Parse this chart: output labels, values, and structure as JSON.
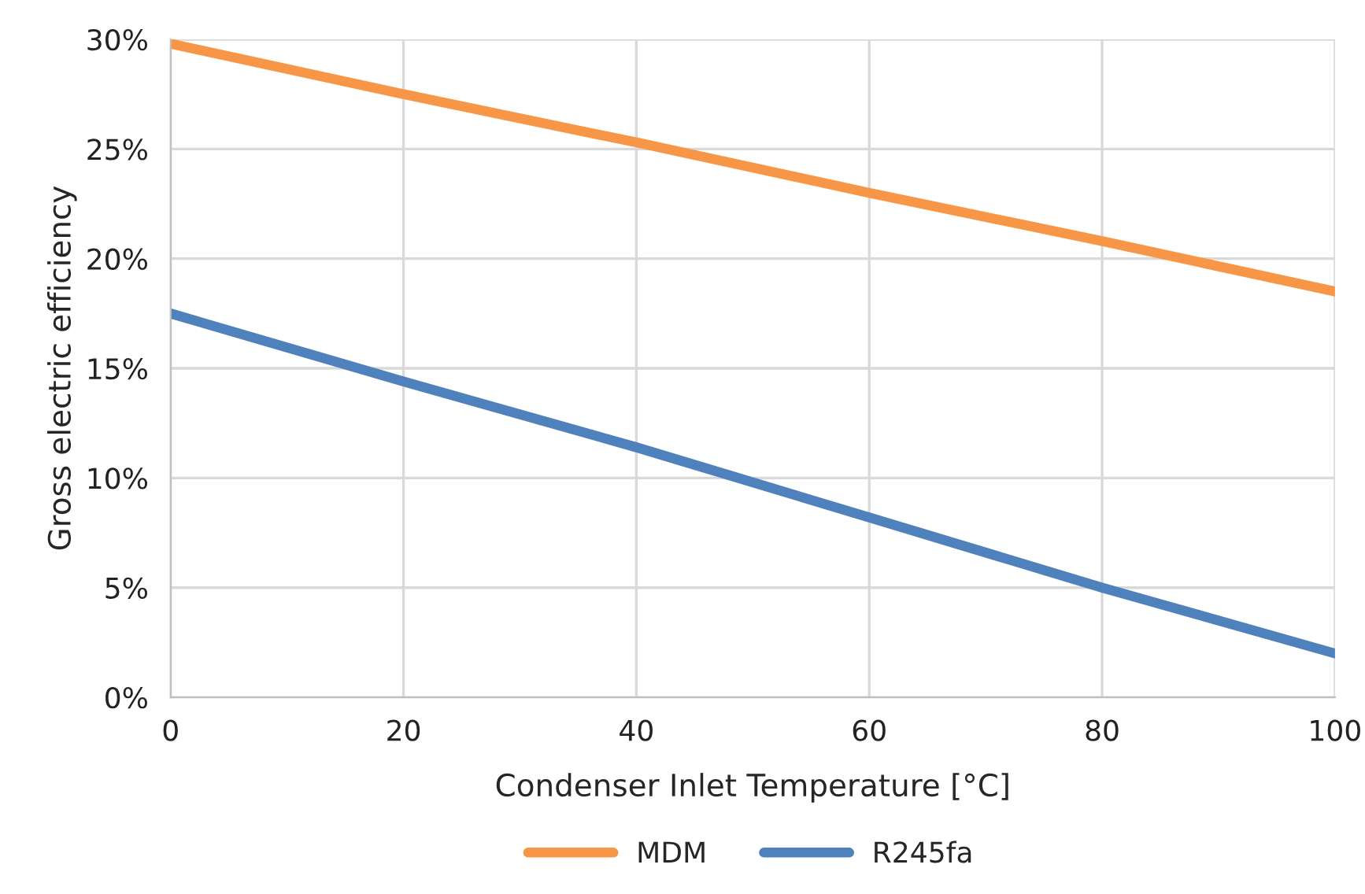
{
  "chart_data": {
    "type": "line",
    "xlabel": "Condenser Inlet Temperature [°C]",
    "ylabel": "Gross electric efficiency",
    "x": [
      0,
      20,
      40,
      60,
      80,
      100
    ],
    "series": [
      {
        "name": "MDM",
        "color": "#f79646",
        "values": [
          29.8,
          27.5,
          25.3,
          23.0,
          20.8,
          18.5
        ]
      },
      {
        "name": "R245fa",
        "color": "#4f81bd",
        "values": [
          17.5,
          14.4,
          11.4,
          8.2,
          5.0,
          2.0
        ]
      }
    ],
    "xlim": [
      0,
      100
    ],
    "xticks": [
      0,
      20,
      40,
      60,
      80,
      100
    ],
    "ylim": [
      0,
      30
    ],
    "yticks": [
      {
        "value": 0,
        "label": "0%"
      },
      {
        "value": 5,
        "label": "5%"
      },
      {
        "value": 10,
        "label": "10%"
      },
      {
        "value": 15,
        "label": "15%"
      },
      {
        "value": 20,
        "label": "20%"
      },
      {
        "value": 25,
        "label": "25%"
      },
      {
        "value": 30,
        "label": "30%"
      }
    ],
    "grid": true,
    "legend": "bottom",
    "marker": "none",
    "line_style": "solid"
  }
}
